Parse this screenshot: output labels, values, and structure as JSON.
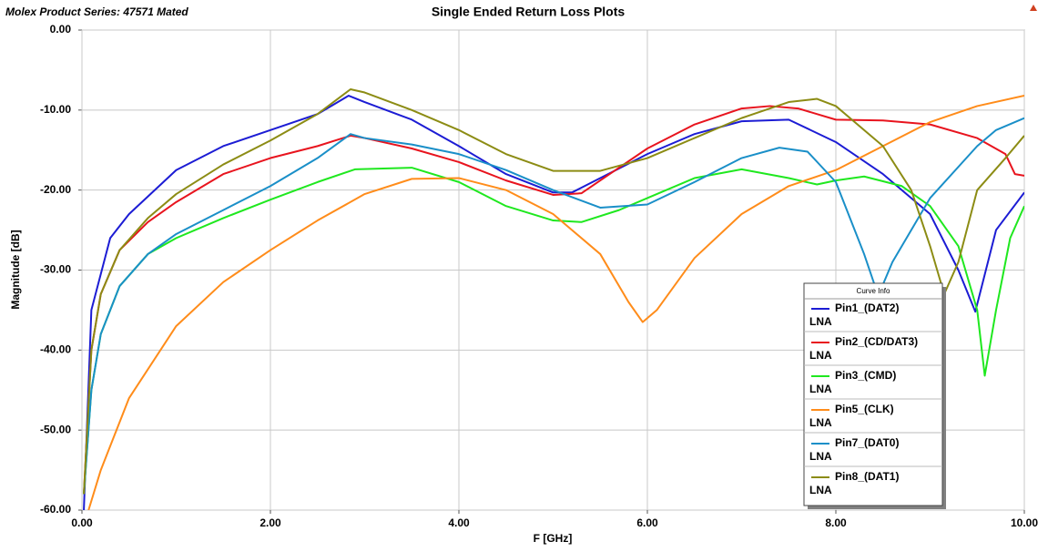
{
  "chart_data": {
    "type": "line",
    "source_label": "Molex Product Series: 47571 Mated",
    "title": "Single Ended Return Loss Plots",
    "xlabel": "F [GHz]",
    "ylabel": "Magnitude [dB]",
    "xlim": [
      0,
      10
    ],
    "ylim": [
      -60,
      0
    ],
    "xticks": [
      {
        "value": 0,
        "label": "0.00"
      },
      {
        "value": 2,
        "label": "2.00"
      },
      {
        "value": 4,
        "label": "4.00"
      },
      {
        "value": 6,
        "label": "6.00"
      },
      {
        "value": 8,
        "label": "8.00"
      },
      {
        "value": 10,
        "label": "10.00"
      }
    ],
    "yticks": [
      {
        "value": 0,
        "label": "0.00"
      },
      {
        "value": -10,
        "label": "-10.00"
      },
      {
        "value": -20,
        "label": "-20.00"
      },
      {
        "value": -30,
        "label": "-30.00"
      },
      {
        "value": -40,
        "label": "-40.00"
      },
      {
        "value": -50,
        "label": "-50.00"
      },
      {
        "value": -60,
        "label": "-60.00"
      }
    ],
    "grid": true,
    "legend_title": "Curve Info",
    "legend_position": "lower-right",
    "series": [
      {
        "name": "Pin1_(DAT2)",
        "subtitle": "LNA",
        "color": "#1c1cd4",
        "x": [
          0.02,
          0.1,
          0.3,
          0.5,
          1.0,
          1.5,
          2.0,
          2.5,
          2.83,
          3.0,
          3.5,
          4.0,
          4.5,
          5.0,
          5.2,
          5.5,
          6.0,
          6.5,
          7.0,
          7.5,
          8.0,
          8.5,
          9.0,
          9.3,
          9.48,
          9.7,
          10.0
        ],
        "values": [
          -60,
          -35,
          -26,
          -23,
          -17.5,
          -14.5,
          -12.5,
          -10.5,
          -8.2,
          -9,
          -11.2,
          -14.5,
          -18,
          -20.3,
          -20.3,
          -18.5,
          -15.5,
          -13,
          -11.4,
          -11.2,
          -14,
          -18,
          -23,
          -30,
          -35.2,
          -25,
          -20.3
        ]
      },
      {
        "name": "Pin2_(CD/DAT3)",
        "subtitle": "LNA",
        "color": "#e8141e",
        "x": [
          0.02,
          0.1,
          0.2,
          0.4,
          0.7,
          1.0,
          1.5,
          2.0,
          2.5,
          2.85,
          3.0,
          3.5,
          4.0,
          4.5,
          5.0,
          5.3,
          5.6,
          6.0,
          6.5,
          7.0,
          7.3,
          7.6,
          8.0,
          8.5,
          9.0,
          9.5,
          9.8,
          9.9,
          10.0
        ],
        "values": [
          -58,
          -40,
          -33,
          -27.5,
          -24,
          -21.5,
          -18,
          -16,
          -14.5,
          -13.2,
          -13.5,
          -14.8,
          -16.5,
          -18.8,
          -20.6,
          -20.4,
          -18,
          -14.8,
          -11.8,
          -9.8,
          -9.5,
          -9.8,
          -11.2,
          -11.3,
          -11.8,
          -13.5,
          -15.5,
          -18,
          -18.2
        ]
      },
      {
        "name": "Pin3_(CMD)",
        "subtitle": "LNA",
        "color": "#1fe81f",
        "x": [
          0.02,
          0.1,
          0.2,
          0.4,
          0.7,
          1.0,
          1.5,
          2.0,
          2.5,
          2.9,
          3.5,
          4.0,
          4.5,
          5.0,
          5.3,
          5.7,
          6.0,
          6.5,
          7.0,
          7.5,
          7.8,
          8.0,
          8.3,
          8.7,
          9.0,
          9.3,
          9.5,
          9.58,
          9.7,
          9.85,
          10.0
        ],
        "values": [
          -58,
          -45,
          -38,
          -32,
          -28,
          -26,
          -23.5,
          -21.2,
          -19,
          -17.4,
          -17.2,
          -19,
          -22,
          -23.8,
          -24,
          -22.5,
          -21,
          -18.5,
          -17.4,
          -18.5,
          -19.3,
          -18.8,
          -18.3,
          -19.5,
          -22,
          -27,
          -35,
          -43.2,
          -35,
          -26,
          -22
        ]
      },
      {
        "name": "Pin5_(CLK)",
        "subtitle": "LNA",
        "color": "#ff8c1a",
        "x": [
          0.07,
          0.2,
          0.5,
          1.0,
          1.5,
          2.0,
          2.5,
          3.0,
          3.5,
          4.0,
          4.5,
          5.0,
          5.5,
          5.8,
          5.95,
          6.1,
          6.5,
          7.0,
          7.5,
          8.0,
          8.5,
          9.0,
          9.5,
          10.0
        ],
        "values": [
          -60,
          -55,
          -46,
          -37,
          -31.5,
          -27.5,
          -23.8,
          -20.5,
          -18.6,
          -18.5,
          -20,
          -23,
          -28,
          -34,
          -36.5,
          -35,
          -28.5,
          -23,
          -19.5,
          -17.5,
          -14.5,
          -11.5,
          -9.5,
          -8.2
        ]
      },
      {
        "name": "Pin7_(DAT0)",
        "subtitle": "LNA",
        "color": "#1a8fc8",
        "x": [
          0.02,
          0.1,
          0.2,
          0.4,
          0.7,
          1.0,
          1.5,
          2.0,
          2.5,
          2.85,
          3.0,
          3.5,
          4.0,
          4.5,
          5.0,
          5.5,
          6.0,
          6.5,
          7.0,
          7.4,
          7.7,
          8.0,
          8.3,
          8.45,
          8.6,
          9.0,
          9.5,
          9.7,
          10.0
        ],
        "values": [
          -58,
          -45,
          -38,
          -32,
          -28,
          -25.5,
          -22.5,
          -19.5,
          -16,
          -13,
          -13.5,
          -14.3,
          -15.5,
          -17.5,
          -20,
          -22.2,
          -21.8,
          -19,
          -16,
          -14.7,
          -15.2,
          -19,
          -28,
          -33.2,
          -29,
          -21,
          -14.5,
          -12.5,
          -11
        ]
      },
      {
        "name": "Pin8_(DAT1)",
        "subtitle": "LNA",
        "color": "#8c8c14",
        "x": [
          0.02,
          0.1,
          0.2,
          0.4,
          0.7,
          1.0,
          1.5,
          2.0,
          2.5,
          2.85,
          3.0,
          3.5,
          4.0,
          4.5,
          5.0,
          5.5,
          6.0,
          6.5,
          7.0,
          7.5,
          7.8,
          8.0,
          8.5,
          8.8,
          9.0,
          9.15,
          9.3,
          9.5,
          9.8,
          10.0
        ],
        "values": [
          -58,
          -40,
          -33,
          -27.5,
          -23.5,
          -20.5,
          -16.8,
          -13.8,
          -10.5,
          -7.4,
          -7.8,
          -10,
          -12.5,
          -15.5,
          -17.6,
          -17.6,
          -16,
          -13.5,
          -11,
          -9,
          -8.6,
          -9.5,
          -14.5,
          -20,
          -27,
          -33,
          -29,
          -20,
          -16,
          -13.2
        ]
      }
    ]
  }
}
